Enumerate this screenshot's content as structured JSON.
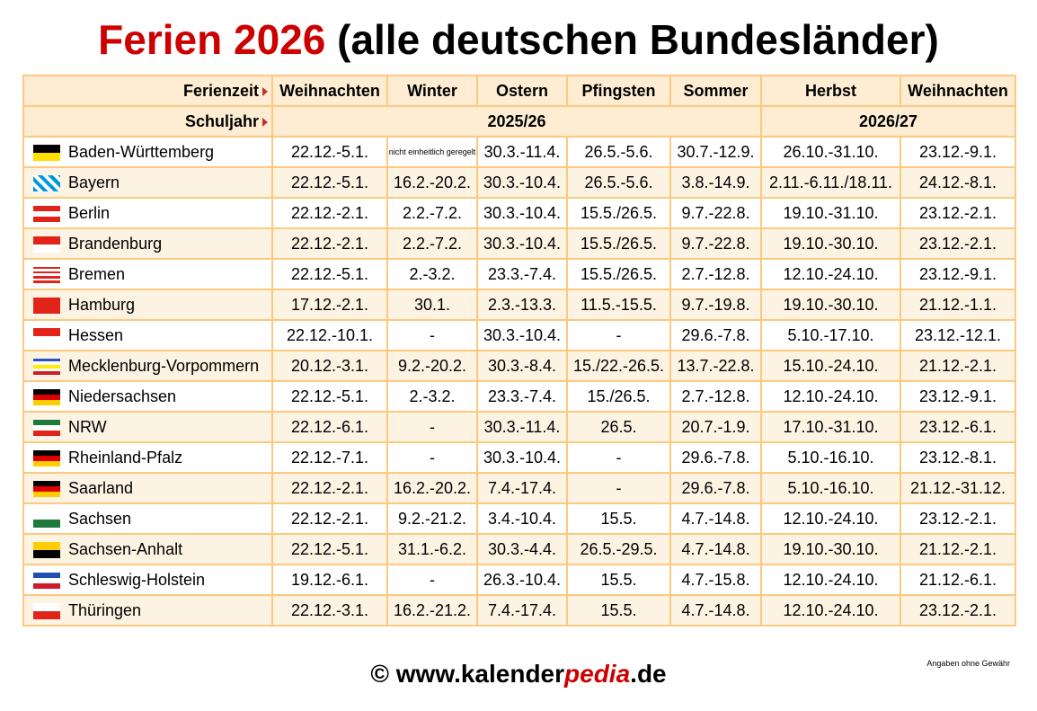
{
  "title": {
    "highlight": "Ferien 2026",
    "rest": " (alle deutschen Bundesländer)"
  },
  "header": {
    "row_label": "Ferienzeit",
    "columns": [
      "Weihnachten",
      "Winter",
      "Ostern",
      "Pfingsten",
      "Sommer",
      "Herbst",
      "Weihnachten"
    ],
    "year_label": "Schuljahr",
    "years": [
      "2025/26",
      "2026/27"
    ]
  },
  "rows": [
    {
      "state": "Baden-Württemberg",
      "flag": [
        "#000000",
        "#ffdf00"
      ],
      "values": [
        "22.12.-5.1.",
        "nicht einheitlich geregelt",
        "30.3.-11.4.",
        "26.5.-5.6.",
        "30.7.-12.9.",
        "26.10.-31.10.",
        "23.12.-9.1."
      ]
    },
    {
      "state": "Bayern",
      "flag": [
        "#0099dd",
        "#ffffff"
      ],
      "values": [
        "22.12.-5.1.",
        "16.2.-20.2.",
        "30.3.-10.4.",
        "26.5.-5.6.",
        "3.8.-14.9.",
        "2.11.-6.11./18.11.",
        "24.12.-8.1."
      ]
    },
    {
      "state": "Berlin",
      "flag": [
        "#e2231a",
        "#ffffff",
        "#e2231a"
      ],
      "values": [
        "22.12.-2.1.",
        "2.2.-7.2.",
        "30.3.-10.4.",
        "15.5./26.5.",
        "9.7.-22.8.",
        "19.10.-31.10.",
        "23.12.-2.1."
      ]
    },
    {
      "state": "Brandenburg",
      "flag": [
        "#e2231a",
        "#ffffff"
      ],
      "values": [
        "22.12.-2.1.",
        "2.2.-7.2.",
        "30.3.-10.4.",
        "15.5./26.5.",
        "9.7.-22.8.",
        "19.10.-30.10.",
        "23.12.-2.1."
      ]
    },
    {
      "state": "Bremen",
      "flag": [
        "#e2231a",
        "#ffffff",
        "#e2231a",
        "#ffffff",
        "#e2231a",
        "#ffffff",
        "#e2231a"
      ],
      "values": [
        "22.12.-5.1.",
        "2.-3.2.",
        "23.3.-7.4.",
        "15.5./26.5.",
        "2.7.-12.8.",
        "12.10.-24.10.",
        "23.12.-9.1."
      ]
    },
    {
      "state": "Hamburg",
      "flag": [
        "#e2231a"
      ],
      "values": [
        "17.12.-2.1.",
        "30.1.",
        "2.3.-13.3.",
        "11.5.-15.5.",
        "9.7.-19.8.",
        "19.10.-30.10.",
        "21.12.-1.1."
      ]
    },
    {
      "state": "Hessen",
      "flag": [
        "#e2231a",
        "#ffffff"
      ],
      "values": [
        "22.12.-10.1.",
        "-",
        "30.3.-10.4.",
        "-",
        "29.6.-7.8.",
        "5.10.-17.10.",
        "23.12.-12.1."
      ]
    },
    {
      "state": "Mecklenburg-Vorpommern",
      "flag": [
        "#2a52be",
        "#ffffff",
        "#ffee00",
        "#ffffff",
        "#d01c2a"
      ],
      "values": [
        "20.12.-3.1.",
        "9.2.-20.2.",
        "30.3.-8.4.",
        "15./22.-26.5.",
        "13.7.-22.8.",
        "15.10.-24.10.",
        "21.12.-2.1."
      ]
    },
    {
      "state": "Niedersachsen",
      "flag": [
        "#000000",
        "#dd0000",
        "#ffce00"
      ],
      "values": [
        "22.12.-5.1.",
        "2.-3.2.",
        "23.3.-7.4.",
        "15./26.5.",
        "2.7.-12.8.",
        "12.10.-24.10.",
        "23.12.-9.1."
      ]
    },
    {
      "state": "NRW",
      "flag": [
        "#1d7a3a",
        "#ffffff",
        "#e2231a"
      ],
      "values": [
        "22.12.-6.1.",
        "-",
        "30.3.-11.4.",
        "26.5.",
        "20.7.-1.9.",
        "17.10.-31.10.",
        "23.12.-6.1."
      ]
    },
    {
      "state": "Rheinland-Pfalz",
      "flag": [
        "#000000",
        "#dd0000",
        "#ffce00"
      ],
      "values": [
        "22.12.-7.1.",
        "-",
        "30.3.-10.4.",
        "-",
        "29.6.-7.8.",
        "5.10.-16.10.",
        "23.12.-8.1."
      ]
    },
    {
      "state": "Saarland",
      "flag": [
        "#000000",
        "#dd0000",
        "#ffce00"
      ],
      "values": [
        "22.12.-2.1.",
        "16.2.-20.2.",
        "7.4.-17.4.",
        "-",
        "29.6.-7.8.",
        "5.10.-16.10.",
        "21.12.-31.12."
      ]
    },
    {
      "state": "Sachsen",
      "flag": [
        "#ffffff",
        "#1d7a3a"
      ],
      "values": [
        "22.12.-2.1.",
        "9.2.-21.2.",
        "3.4.-10.4.",
        "15.5.",
        "4.7.-14.8.",
        "12.10.-24.10.",
        "23.12.-2.1."
      ]
    },
    {
      "state": "Sachsen-Anhalt",
      "flag": [
        "#ffce00",
        "#000000"
      ],
      "values": [
        "22.12.-5.1.",
        "31.1.-6.2.",
        "30.3.-4.4.",
        "26.5.-29.5.",
        "4.7.-14.8.",
        "19.10.-30.10.",
        "21.12.-2.1."
      ]
    },
    {
      "state": "Schleswig-Holstein",
      "flag": [
        "#1f4fb4",
        "#ffffff",
        "#d01c2a"
      ],
      "values": [
        "19.12.-6.1.",
        "-",
        "26.3.-10.4.",
        "15.5.",
        "4.7.-15.8.",
        "12.10.-24.10.",
        "21.12.-6.1."
      ]
    },
    {
      "state": "Thüringen",
      "flag": [
        "#ffffff",
        "#e2231a"
      ],
      "values": [
        "22.12.-3.1.",
        "16.2.-21.2.",
        "7.4.-17.4.",
        "15.5.",
        "4.7.-14.8.",
        "12.10.-24.10.",
        "23.12.-2.1."
      ]
    }
  ],
  "footer": {
    "copyright": "© www.kalender",
    "brand_accent": "pedia",
    "tld": ".de",
    "disclaimer": "Angaben ohne Gewähr"
  },
  "colors": {
    "accent": "#cc0000",
    "border": "#fcc97e",
    "header_bg": "#ffedd3",
    "stripe_bg": "#fdf3e3"
  }
}
